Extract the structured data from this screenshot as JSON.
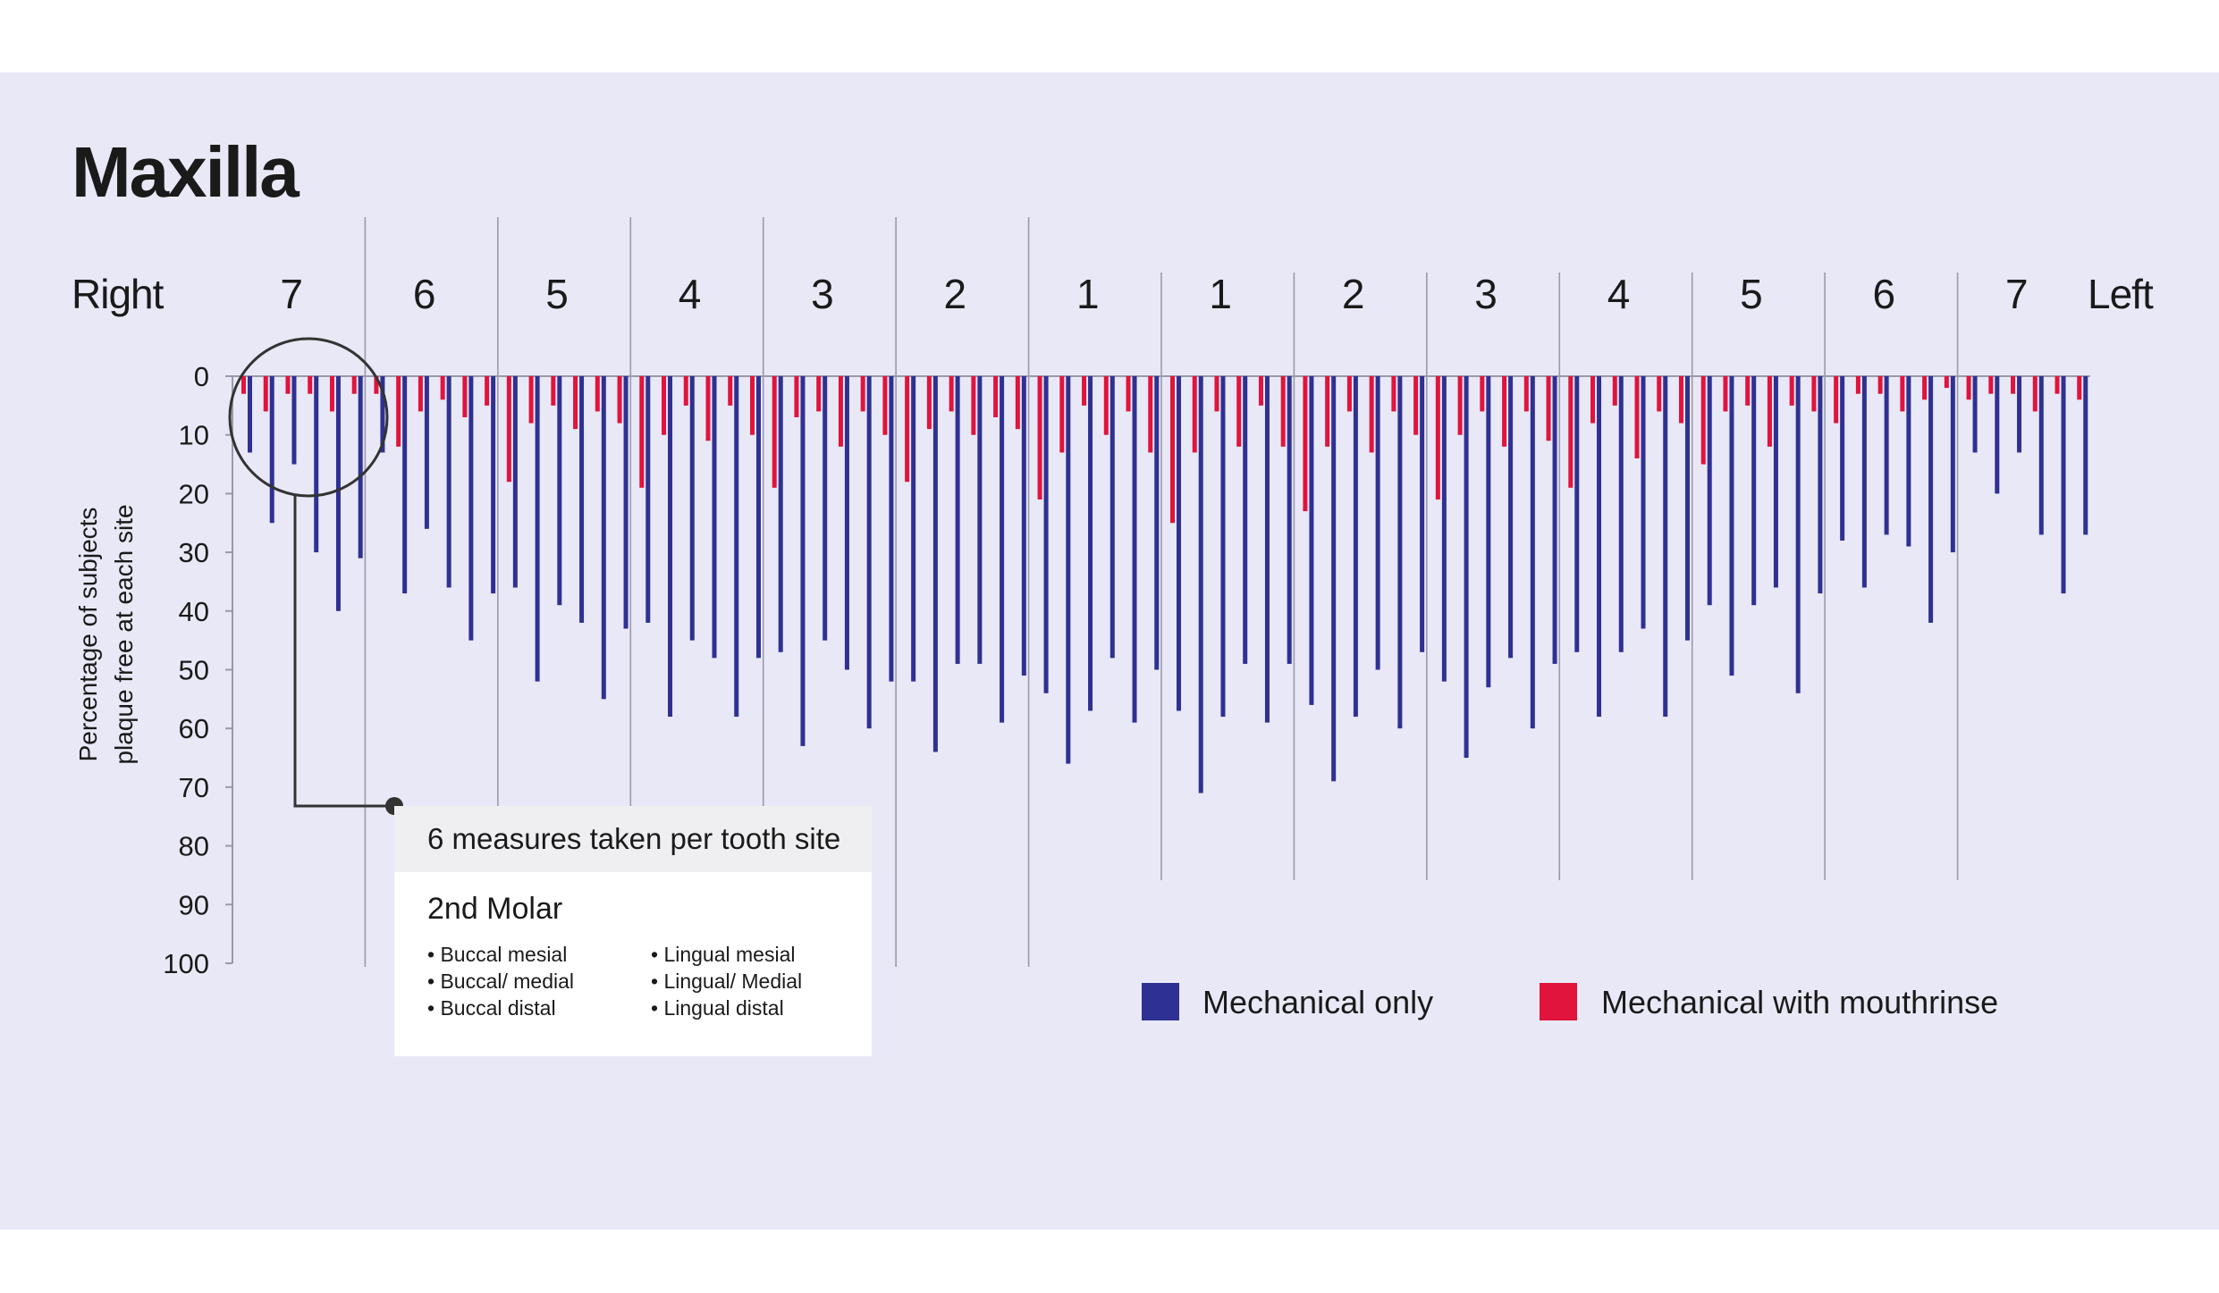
{
  "colors": {
    "background": "#e9e8f6",
    "mechanical_only": "#2e3192",
    "mechanical_with_mouthrinse": "#e0143c",
    "divider": "#9a9aaa"
  },
  "chart_data": {
    "type": "bar",
    "title": "Maxilla",
    "orientation": "inverted-vertical",
    "side_labels": {
      "right": "Right",
      "left": "Left"
    },
    "teeth": [
      "7",
      "6",
      "5",
      "4",
      "3",
      "2",
      "1",
      "1",
      "2",
      "3",
      "4",
      "5",
      "6",
      "7"
    ],
    "sites_per_tooth": 6,
    "ylabel": [
      "Percentage of subjects",
      "plaque free at each site"
    ],
    "y_ticks": [
      "0",
      "10",
      "20",
      "30",
      "40",
      "50",
      "60",
      "70",
      "80",
      "90",
      "100"
    ],
    "ylim": [
      0,
      100
    ],
    "legend": [
      "Mechanical only",
      "Mechanical with mouthrinse"
    ],
    "series": [
      {
        "name": "Mechanical with mouthrinse",
        "values": [
          3,
          6,
          3,
          3,
          6,
          3,
          3,
          12,
          6,
          4,
          7,
          5,
          18,
          8,
          5,
          9,
          6,
          8,
          19,
          10,
          5,
          11,
          5,
          10,
          19,
          7,
          6,
          12,
          6,
          10,
          18,
          9,
          6,
          10,
          7,
          9,
          21,
          13,
          5,
          10,
          6,
          13,
          25,
          13,
          6,
          12,
          5,
          12,
          23,
          12,
          6,
          13,
          6,
          10,
          21,
          10,
          6,
          12,
          6,
          11,
          19,
          8,
          5,
          14,
          6,
          8,
          15,
          6,
          5,
          12,
          5,
          6,
          8,
          3,
          3,
          6,
          4,
          2,
          4,
          3,
          3,
          6,
          3,
          4
        ]
      },
      {
        "name": "Mechanical only",
        "values": [
          13,
          25,
          15,
          30,
          40,
          31,
          13,
          37,
          26,
          36,
          45,
          37,
          36,
          52,
          39,
          42,
          55,
          43,
          42,
          58,
          45,
          48,
          58,
          48,
          47,
          63,
          45,
          50,
          60,
          52,
          52,
          64,
          49,
          49,
          59,
          51,
          54,
          66,
          57,
          48,
          59,
          50,
          57,
          71,
          58,
          49,
          59,
          49,
          56,
          69,
          58,
          50,
          60,
          47,
          52,
          65,
          53,
          48,
          60,
          49,
          47,
          58,
          47,
          43,
          58,
          45,
          39,
          51,
          39,
          36,
          54,
          37,
          28,
          36,
          27,
          29,
          42,
          30,
          13,
          20,
          13,
          27,
          37,
          27
        ]
      }
    ]
  },
  "callout": {
    "title": "6 measures taken per tooth site",
    "subtitle": "2nd Molar",
    "items": [
      "• Buccal mesial",
      "• Buccal/ medial",
      "• Buccal distal",
      "• Lingual mesial",
      "• Lingual/ Medial",
      "• Lingual distal"
    ]
  }
}
